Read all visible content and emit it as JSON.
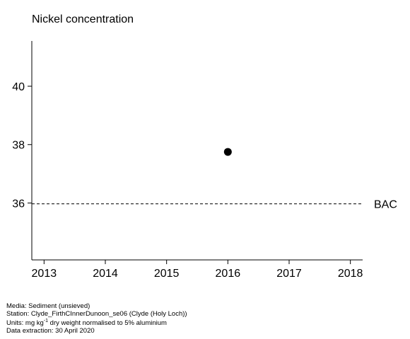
{
  "chart_data": {
    "type": "scatter",
    "title": "Nickel concentration",
    "xlabel": "",
    "ylabel": "",
    "xlim": [
      2012.8,
      2018.2
    ],
    "ylim": [
      34.05,
      41.55
    ],
    "x_ticks": [
      2013,
      2014,
      2015,
      2016,
      2017,
      2018
    ],
    "y_ticks": [
      36,
      38,
      40
    ],
    "grid": false,
    "points": [
      {
        "x": 2016,
        "y": 37.75
      }
    ],
    "reference_lines": [
      {
        "label": "BAC",
        "y": 35.97,
        "style": "dashed"
      }
    ],
    "colors": {
      "points": "#000000",
      "reference_line": "#000000"
    }
  },
  "footer": {
    "media": "Media: Sediment (unsieved)",
    "station": "Station: Clyde_FirthCInnerDunoon_se06 (Clyde (Holy Loch))",
    "units_prefix": "Units:  mg kg",
    "units_sup": "-1",
    "units_suffix": " dry weight normalised to 5% aluminium",
    "extraction": "Data extraction: 30 April 2020"
  }
}
